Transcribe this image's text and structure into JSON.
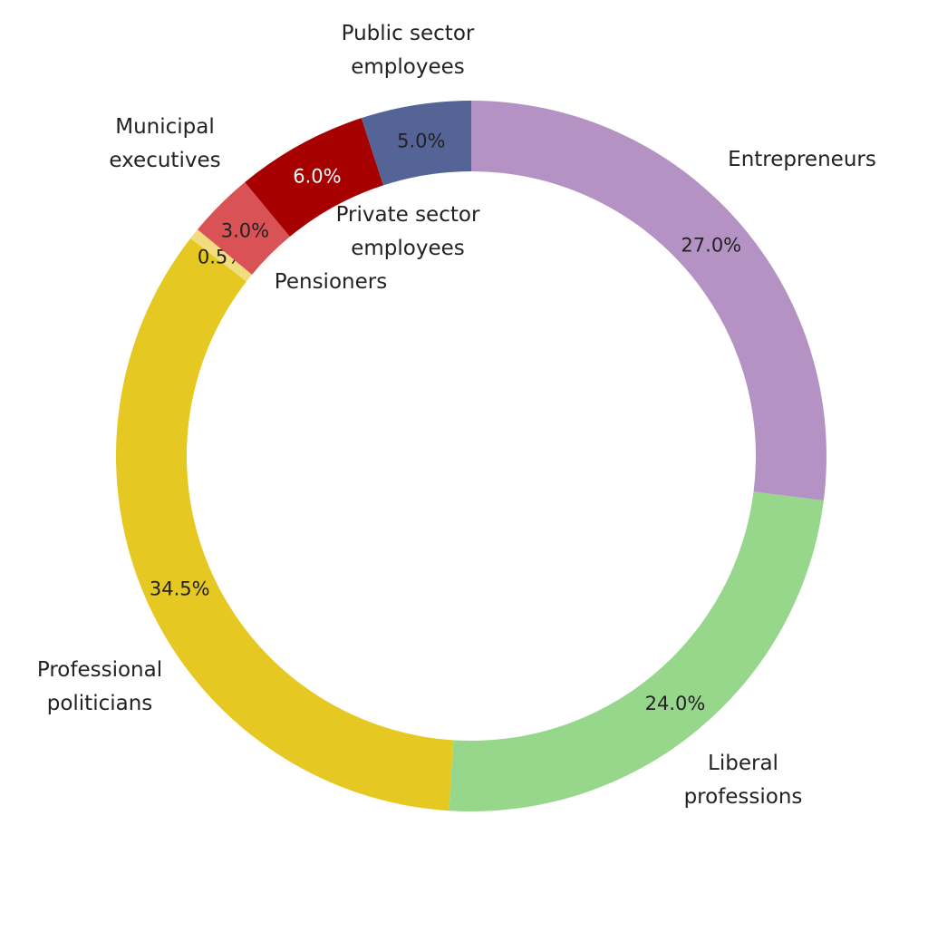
{
  "chart_data": {
    "type": "pie",
    "variant": "donut",
    "title": "",
    "slices": [
      {
        "label": "Entrepreneurs",
        "value": 27.0,
        "value_label": "27.0%",
        "color": "#b493c4",
        "value_text_color": "#222222"
      },
      {
        "label": "Liberal professions",
        "value": 24.0,
        "value_label": "24.0%",
        "color": "#97d78c",
        "value_text_color": "#222222"
      },
      {
        "label": "Professional politicians",
        "value": 34.5,
        "value_label": "34.5%",
        "color": "#e6c823",
        "value_text_color": "#222222"
      },
      {
        "label": "Pensioners",
        "value": 0.5,
        "value_label": "0.5%",
        "color": "#f1dd7e",
        "value_text_color": "#222222"
      },
      {
        "label": "Municipal executives",
        "value": 3.0,
        "value_label": "3.0%",
        "color": "#d95356",
        "value_text_color": "#222222"
      },
      {
        "label": "Private sector employees",
        "value": 6.0,
        "value_label": "6.0%",
        "color": "#a70000",
        "value_text_color": "#ffffff"
      },
      {
        "label": "Public sector employees",
        "value": 5.0,
        "value_label": "5.0%",
        "color": "#546497",
        "value_text_color": "#222222"
      }
    ],
    "legend": "none"
  }
}
